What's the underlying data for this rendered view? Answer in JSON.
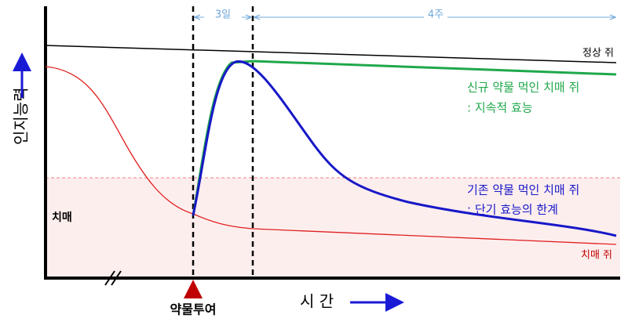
{
  "diagram": {
    "y_axis_label": "인지능력",
    "x_axis_label": "시 간",
    "drug_label": "약물투여",
    "interval_short": "3일",
    "interval_long": "4주",
    "normal_label": "정상 쥐",
    "new_drug_label": "신규 약물 먹인 치매 쥐",
    "new_drug_note": ": 지속적 효능",
    "old_drug_label": "기존 약물 먹인 치매 쥐",
    "old_drug_note": ": 단기 효능의 한계",
    "dementia_zone_label": "치매",
    "dementia_label": "치매 쥐"
  }
}
